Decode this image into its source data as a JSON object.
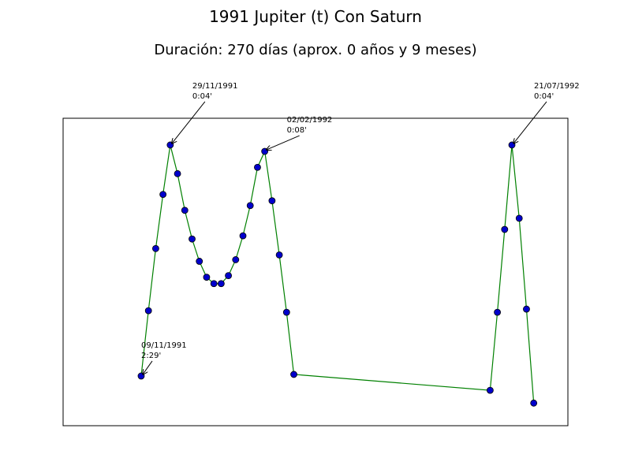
{
  "chart_data": {
    "type": "line",
    "title": "1991 Jupiter (t) Con Saturn",
    "subtitle": "Duración: 270 días (aprox. 0 años y 9 meses)",
    "x": [
      0,
      5,
      10,
      15,
      20,
      25,
      30,
      35,
      40,
      45,
      50,
      55,
      60,
      65,
      70,
      75,
      80,
      85,
      90,
      95,
      100,
      105,
      240,
      245,
      250,
      255,
      260,
      265,
      270
    ],
    "series": [
      {
        "color": "#008000",
        "marker_color": "#0000cc",
        "values": [
          149,
          108,
          69,
          35,
          4,
          22,
          45,
          63,
          77,
          87,
          91,
          91,
          86,
          76,
          61,
          42,
          18,
          8,
          39,
          73,
          109,
          148,
          158,
          109,
          57,
          4,
          50,
          107,
          166
        ]
      }
    ],
    "xlim": [
      -53.7,
      293.5
    ],
    "ylim": [
      180.2,
      -12.8
    ],
    "annotations": [
      {
        "x": 0,
        "lines": [
          "09/11/1991",
          "2:29'"
        ]
      },
      {
        "x": 20,
        "lines": [
          "29/11/1991",
          "0:04'"
        ]
      },
      {
        "x": 85,
        "lines": [
          "02/02/1992",
          "0:08'"
        ]
      },
      {
        "x": 255,
        "lines": [
          "21/07/1992",
          "0:04'"
        ]
      }
    ]
  }
}
